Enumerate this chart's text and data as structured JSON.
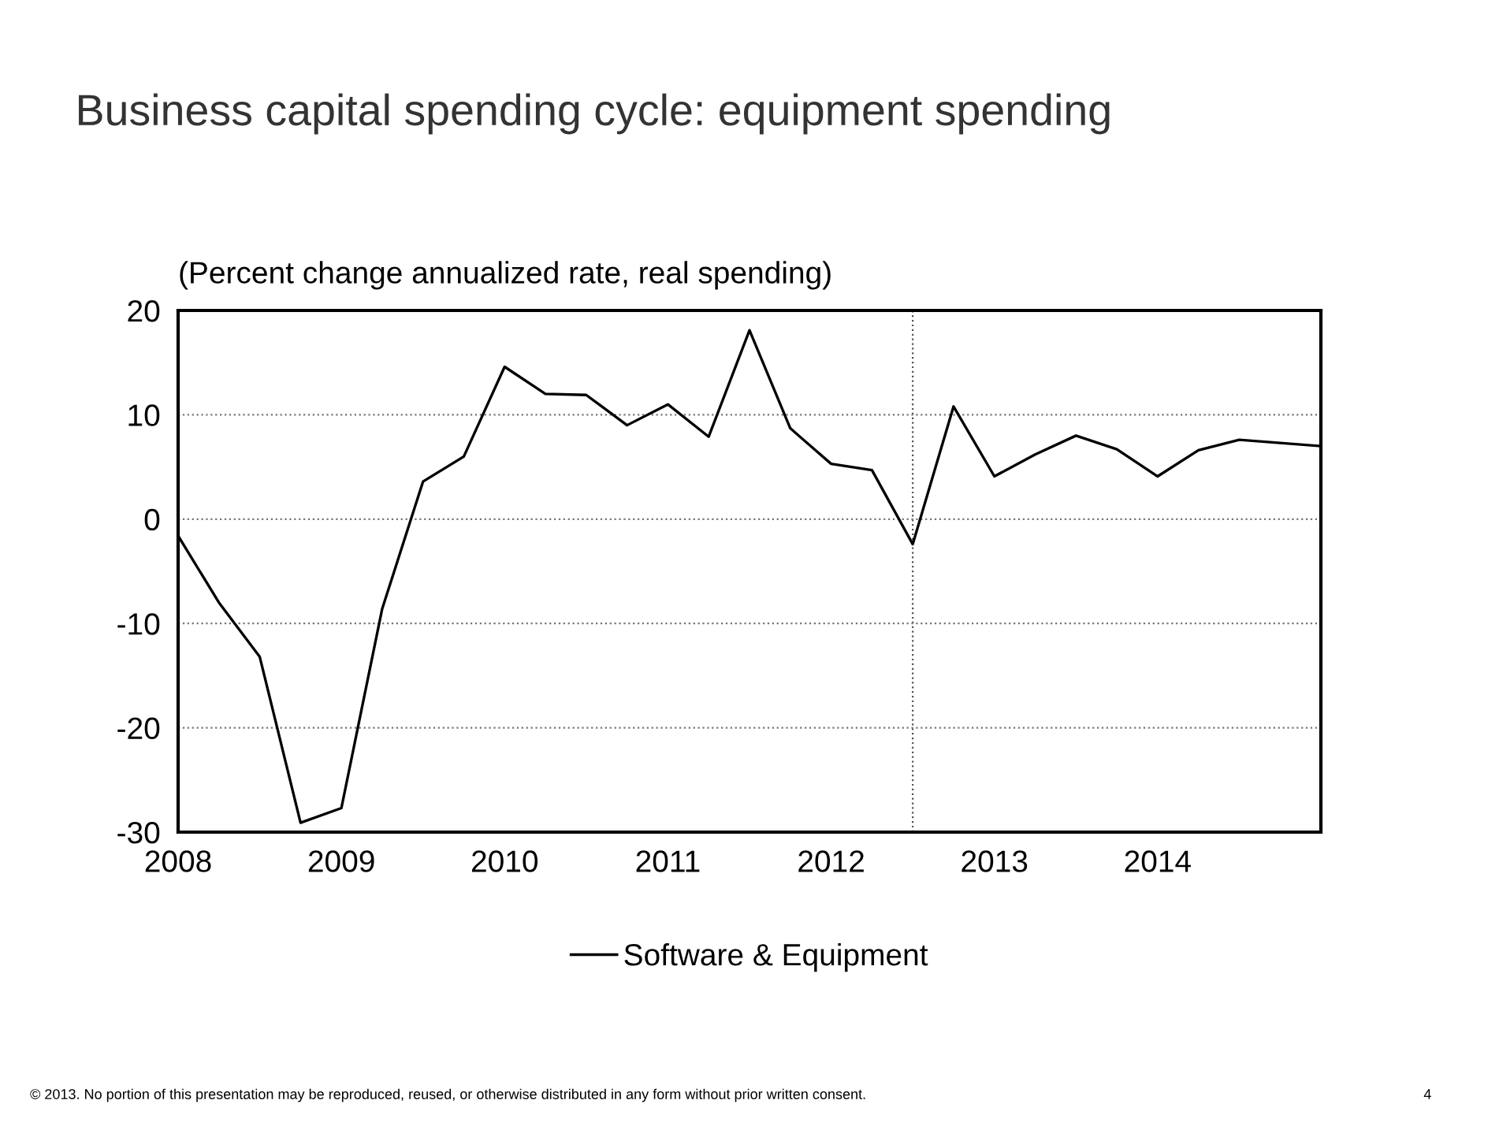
{
  "chart_data": {
    "type": "line",
    "title": "Business capital spending cycle: equipment spending",
    "subtitle": "(Percent change annualized rate, real spending)",
    "x": [
      2008.0,
      2008.25,
      2008.5,
      2008.75,
      2009.0,
      2009.25,
      2009.5,
      2009.75,
      2010.0,
      2010.25,
      2010.5,
      2010.75,
      2011.0,
      2011.25,
      2011.5,
      2011.75,
      2012.0,
      2012.25,
      2012.5,
      2012.75,
      2013.0,
      2013.25,
      2013.5,
      2013.75,
      2014.0,
      2014.25,
      2014.5,
      2014.75,
      2015.0
    ],
    "series": [
      {
        "name": "Software & Equipment",
        "color": "#000000",
        "values": [
          -1.6,
          -8,
          -13.2,
          -29.1,
          -27.7,
          -8.6,
          3.6,
          6.0,
          14.6,
          12.0,
          11.9,
          9.0,
          11.0,
          7.9,
          18.1,
          8.7,
          5.3,
          4.7,
          -2.4,
          10.8,
          4.1,
          6.2,
          8.0,
          6.7,
          4.1,
          6.6,
          7.6,
          7.3,
          7.0
        ]
      }
    ],
    "xlim": [
      2008,
      2015
    ],
    "xticks": [
      2008,
      2009,
      2010,
      2011,
      2012,
      2013,
      2014
    ],
    "ylim": [
      -30,
      20
    ],
    "yticks": [
      -30,
      -20,
      -10,
      0,
      10,
      20
    ],
    "grid": "y",
    "legend": "bottom",
    "line_style": "solid",
    "marker": "none",
    "ref_lines": [
      {
        "axis": "x",
        "value": 2012.5,
        "color": "#555555",
        "line_style": "dotted"
      }
    ],
    "annotations": [
      "© 2013. No portion of this presentation may be reproduced, reused, or otherwise distributed in any form without prior written consent.",
      "4"
    ]
  }
}
